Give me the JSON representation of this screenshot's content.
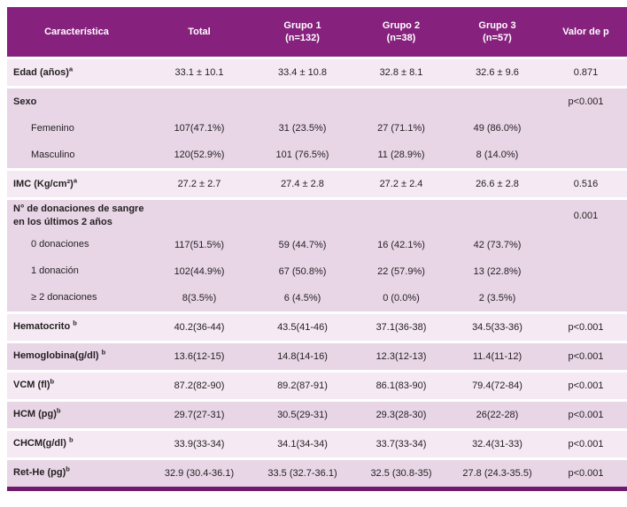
{
  "colors": {
    "header_bg": "#86217e",
    "row_light": "#f5e9f3",
    "row_dark": "#e8d6e7",
    "bottom_bar": "#701a6e",
    "text": "#231f20",
    "header_text": "#ffffff"
  },
  "chart_data": {
    "type": "table",
    "title": "",
    "columns": [
      {
        "label": "Característica"
      },
      {
        "label": "Total"
      },
      {
        "label": "Grupo 1",
        "sub": "(n=132)"
      },
      {
        "label": "Grupo 2",
        "sub": "(n=38)"
      },
      {
        "label": "Grupo 3",
        "sub": "(n=57)"
      },
      {
        "label": "Valor de p"
      }
    ],
    "rows": [
      {
        "label": "Edad (años)",
        "sup": "a",
        "bold": true,
        "indent": false,
        "shade": "light",
        "starts_group": true,
        "values": [
          "33.1 ± 10.1",
          "33.4 ± 10.8",
          "32.8 ± 8.1",
          "32.6 ± 9.6"
        ],
        "p": "0.871"
      },
      {
        "label": "Sexo",
        "bold": true,
        "indent": false,
        "shade": "dark",
        "starts_group": true,
        "values": [
          "",
          "",
          "",
          ""
        ],
        "p": "p<0.001"
      },
      {
        "label": "Femenino",
        "bold": false,
        "indent": true,
        "shade": "dark",
        "starts_group": false,
        "values": [
          "107(47.1%)",
          "31 (23.5%)",
          "27 (71.1%)",
          "49 (86.0%)"
        ],
        "p": ""
      },
      {
        "label": "Masculino",
        "bold": false,
        "indent": true,
        "shade": "dark",
        "starts_group": false,
        "values": [
          "120(52.9%)",
          "101 (76.5%)",
          "11 (28.9%)",
          "8 (14.0%)"
        ],
        "p": ""
      },
      {
        "label": "IMC (Kg/cm²)",
        "sup": "a",
        "bold": true,
        "indent": false,
        "shade": "light",
        "starts_group": true,
        "values": [
          "27.2 ± 2.7",
          "27.4 ± 2.8",
          "27.2 ± 2.4",
          "26.6 ± 2.8"
        ],
        "p": "0.516"
      },
      {
        "label": "N° de donaciones de sangre en los últimos 2 años",
        "bold": true,
        "indent": false,
        "shade": "dark",
        "starts_group": true,
        "values": [
          "",
          "",
          "",
          ""
        ],
        "p": "0.001"
      },
      {
        "label": "0 donaciones",
        "bold": false,
        "indent": true,
        "shade": "dark",
        "starts_group": false,
        "values": [
          "117(51.5%)",
          "59 (44.7%)",
          "16 (42.1%)",
          "42 (73.7%)"
        ],
        "p": ""
      },
      {
        "label": "1 donación",
        "bold": false,
        "indent": true,
        "shade": "dark",
        "starts_group": false,
        "values": [
          "102(44.9%)",
          "67 (50.8%)",
          "22 (57.9%)",
          "13 (22.8%)"
        ],
        "p": ""
      },
      {
        "label": "≥ 2 donaciones",
        "bold": false,
        "indent": true,
        "shade": "dark",
        "starts_group": false,
        "values": [
          "8(3.5%)",
          "6 (4.5%)",
          "0 (0.0%)",
          "2 (3.5%)"
        ],
        "p": ""
      },
      {
        "label": "Hematocrito ",
        "sup": "b",
        "bold": true,
        "indent": false,
        "shade": "light",
        "starts_group": true,
        "values": [
          "40.2(36-44)",
          "43.5(41-46)",
          "37.1(36-38)",
          "34.5(33-36)"
        ],
        "p": "p<0.001"
      },
      {
        "label": "Hemoglobina(g/dl) ",
        "sup": "b",
        "bold": true,
        "indent": false,
        "shade": "dark",
        "starts_group": true,
        "values": [
          "13.6(12-15)",
          "14.8(14-16)",
          "12.3(12-13)",
          "11.4(11-12)"
        ],
        "p": "p<0.001"
      },
      {
        "label": "VCM (fl)",
        "sup": "b",
        "bold": true,
        "indent": false,
        "shade": "light",
        "starts_group": true,
        "values": [
          "87.2(82-90)",
          "89.2(87-91)",
          "86.1(83-90)",
          "79.4(72-84)"
        ],
        "p": "p<0.001"
      },
      {
        "label": "HCM (pg)",
        "sup": "b",
        "bold": true,
        "indent": false,
        "shade": "dark",
        "starts_group": true,
        "values": [
          "29.7(27-31)",
          "30.5(29-31)",
          "29.3(28-30)",
          "26(22-28)"
        ],
        "p": "p<0.001"
      },
      {
        "label": "CHCM(g/dl) ",
        "sup": "b",
        "bold": true,
        "indent": false,
        "shade": "light",
        "starts_group": true,
        "values": [
          "33.9(33-34)",
          "34.1(34-34)",
          "33.7(33-34)",
          "32.4(31-33)"
        ],
        "p": "p<0.001"
      },
      {
        "label": "Ret-He (pg)",
        "sup": "b",
        "bold": true,
        "indent": false,
        "shade": "dark",
        "starts_group": true,
        "values": [
          "32.9 (30.4-36.1)",
          "33.5 (32.7-36.1)",
          "32.5 (30.8-35)",
          "27.8 (24.3-35.5)"
        ],
        "p": "p<0.001"
      }
    ]
  }
}
